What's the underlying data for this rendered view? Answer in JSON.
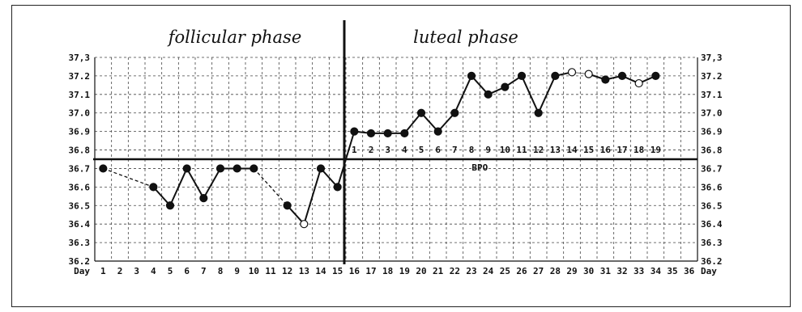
{
  "chart_data": {
    "type": "line",
    "phases": [
      "follicular phase",
      "luteal phase"
    ],
    "day_label": "Day",
    "x": [
      1,
      2,
      3,
      4,
      5,
      6,
      7,
      8,
      9,
      10,
      11,
      12,
      13,
      14,
      15,
      16,
      17,
      18,
      19,
      20,
      21,
      22,
      23,
      24,
      25,
      26,
      27,
      28,
      29,
      30,
      31,
      32,
      33,
      34,
      35,
      36
    ],
    "x_tick_labels": [
      "1",
      "2",
      "3",
      "4",
      "5",
      "6",
      "7",
      "8",
      "9",
      "10",
      "11",
      "12",
      "13",
      "14",
      "15",
      "16",
      "17",
      "18",
      "19",
      "20",
      "21",
      "22",
      "23",
      "24",
      "25",
      "26",
      "27",
      "28",
      "29",
      "30",
      "31",
      "32",
      "33",
      "34",
      "35",
      "36"
    ],
    "y_tick_labels": [
      "37,3",
      "37.2",
      "37.1",
      "37.0",
      "36.9",
      "36.8",
      "36.7",
      "36.6",
      "36.5",
      "36.4",
      "36.3",
      "36.2"
    ],
    "right_tick_labels": [
      "37,3",
      "37.2",
      "37.1",
      "37.0",
      "36.9",
      "36.8",
      "36.7",
      "36.6",
      "36.5",
      "36.4",
      "36.3",
      "36.2"
    ],
    "ylim": [
      36.2,
      37.3
    ],
    "cover_line": {
      "value": 36.75,
      "label": "BPO"
    },
    "ovulation_day": 15,
    "luteal_day_labels": [
      "1",
      "2",
      "3",
      "4",
      "5",
      "6",
      "7",
      "8",
      "9",
      "10",
      "11",
      "12",
      "13",
      "14",
      "15",
      "16",
      "17",
      "18",
      "19"
    ],
    "series": [
      {
        "values": [
          36.7,
          null,
          null,
          36.6,
          36.5,
          36.7,
          36.54,
          36.7,
          36.7,
          36.7,
          null,
          36.5,
          36.4,
          36.7,
          36.6,
          36.9,
          36.89,
          36.89,
          36.89,
          37.0,
          36.9,
          37.0,
          37.2,
          37.1,
          37.14,
          37.2,
          37.0,
          37.2,
          37.22,
          37.21,
          37.18,
          37.2,
          37.16,
          37.2,
          null,
          null
        ],
        "hollow_days": [
          13,
          29,
          30,
          33
        ]
      }
    ],
    "connectors_dashed": [
      [
        1,
        4
      ],
      [
        10,
        12
      ]
    ],
    "grid": true
  }
}
